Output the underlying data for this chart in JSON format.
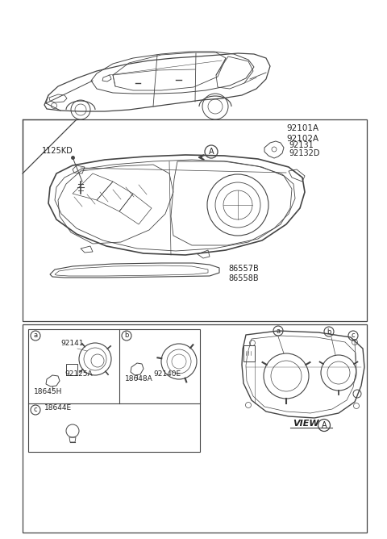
{
  "bg_color": "#ffffff",
  "bc": "#444444",
  "tc": "#222222",
  "part_numbers": {
    "main_headlight": [
      "92101A",
      "92102A"
    ],
    "bracket": [
      "92131",
      "92132D"
    ],
    "screw": "1125KD",
    "strip": [
      "86557B",
      "86558B"
    ],
    "bulb_a_top": "92141",
    "bulb_a_connector": "92125A",
    "bulb_a_socket": "18645H",
    "bulb_b_connector": "18648A",
    "bulb_b_socket": "92140E",
    "bulb_c": "18644E"
  },
  "view_label": "VIEW",
  "view_circle": "A",
  "ca": "a",
  "cb": "b",
  "cc": "c",
  "cA": "A"
}
